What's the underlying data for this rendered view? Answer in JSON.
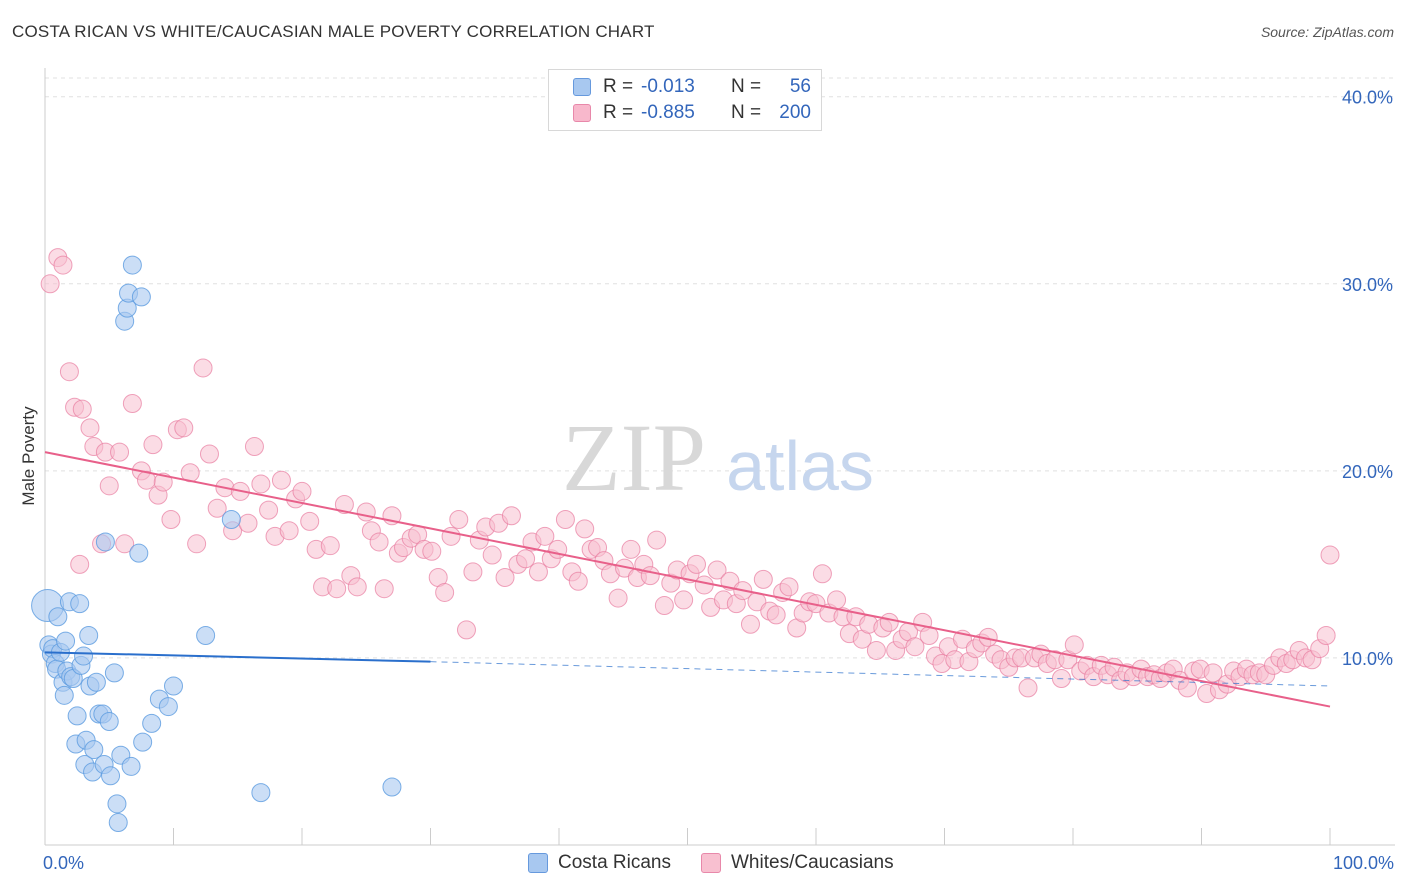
{
  "title": "COSTA RICAN VS WHITE/CAUCASIAN MALE POVERTY CORRELATION CHART",
  "source": "Source: ZipAtlas.com",
  "watermark": {
    "zip": "ZIP",
    "atlas": "atlas"
  },
  "legend": {
    "rows": [
      {
        "r_label": "R =",
        "r_value": "-0.013",
        "n_label": "N =",
        "n_value": "56",
        "color": "#a8c8f0",
        "border": "#6699dd"
      },
      {
        "r_label": "R =",
        "r_value": "-0.885",
        "n_label": "N =",
        "n_value": "200",
        "color": "#f8b8cc",
        "border": "#e888aa"
      }
    ]
  },
  "bottom_legend": [
    {
      "label": "Costa Ricans",
      "color": "#a8c8f0",
      "border": "#6699dd"
    },
    {
      "label": "Whites/Caucasians",
      "color": "#f8c0d0",
      "border": "#e888aa"
    }
  ],
  "chart_data": {
    "type": "scatter",
    "title": "COSTA RICAN VS WHITE/CAUCASIAN MALE POVERTY CORRELATION CHART",
    "xlabel": "",
    "ylabel": "Male Poverty",
    "x_tick_labels": [
      "0.0%",
      "100.0%"
    ],
    "y_tick_labels": [
      "10.0%",
      "20.0%",
      "30.0%",
      "40.0%"
    ],
    "y_ticks": [
      10,
      20,
      30,
      40
    ],
    "xlim": [
      0,
      100
    ],
    "ylim": [
      0,
      41
    ],
    "grid": true,
    "colors": {
      "costa": "#5b9be0",
      "costa_fill": "#a8c8f0",
      "white": "#e87ca0",
      "white_fill": "#f8c0d0",
      "costa_line": "#2a6fcc",
      "white_line": "#e8608a",
      "axis_label": "#3366bb"
    },
    "series": [
      {
        "name": "Costa Ricans",
        "points": [
          [
            0.2,
            12.8
          ],
          [
            0.3,
            10.7
          ],
          [
            0.5,
            10.2
          ],
          [
            0.6,
            10.5
          ],
          [
            0.8,
            9.7
          ],
          [
            0.9,
            9.4
          ],
          [
            1.0,
            12.2
          ],
          [
            1.2,
            10.3
          ],
          [
            1.4,
            8.7
          ],
          [
            1.5,
            8.0
          ],
          [
            1.6,
            10.9
          ],
          [
            1.7,
            9.3
          ],
          [
            1.9,
            13.0
          ],
          [
            2.0,
            9.0
          ],
          [
            2.2,
            8.9
          ],
          [
            2.4,
            5.4
          ],
          [
            2.5,
            6.9
          ],
          [
            2.7,
            12.9
          ],
          [
            2.8,
            9.6
          ],
          [
            3.0,
            10.1
          ],
          [
            3.1,
            4.3
          ],
          [
            3.2,
            5.6
          ],
          [
            3.4,
            11.2
          ],
          [
            3.5,
            8.5
          ],
          [
            3.7,
            3.9
          ],
          [
            3.8,
            5.1
          ],
          [
            4.0,
            8.7
          ],
          [
            4.2,
            7.0
          ],
          [
            4.5,
            7.0
          ],
          [
            4.6,
            4.3
          ],
          [
            4.7,
            16.2
          ],
          [
            5.0,
            6.6
          ],
          [
            5.1,
            3.7
          ],
          [
            5.4,
            9.2
          ],
          [
            5.6,
            2.2
          ],
          [
            5.7,
            1.2
          ],
          [
            5.9,
            4.8
          ],
          [
            6.2,
            28.0
          ],
          [
            6.4,
            28.7
          ],
          [
            6.5,
            29.5
          ],
          [
            6.7,
            4.2
          ],
          [
            6.8,
            31.0
          ],
          [
            7.3,
            15.6
          ],
          [
            7.5,
            29.3
          ],
          [
            7.6,
            5.5
          ],
          [
            8.3,
            6.5
          ],
          [
            8.9,
            7.8
          ],
          [
            9.6,
            7.4
          ],
          [
            10.0,
            8.5
          ],
          [
            12.5,
            11.2
          ],
          [
            14.5,
            17.4
          ],
          [
            16.8,
            2.8
          ],
          [
            27.0,
            3.1
          ]
        ]
      },
      {
        "name": "Whites/Caucasians",
        "points": [
          [
            0.4,
            30.0
          ],
          [
            1.0,
            31.4
          ],
          [
            1.4,
            31.0
          ],
          [
            1.9,
            25.3
          ],
          [
            2.3,
            23.4
          ],
          [
            2.7,
            15.0
          ],
          [
            2.9,
            23.3
          ],
          [
            3.5,
            22.3
          ],
          [
            3.8,
            21.3
          ],
          [
            4.4,
            16.1
          ],
          [
            4.7,
            21.0
          ],
          [
            5.0,
            19.2
          ],
          [
            5.8,
            21.0
          ],
          [
            6.2,
            16.1
          ],
          [
            6.8,
            23.6
          ],
          [
            7.5,
            20.0
          ],
          [
            7.9,
            19.5
          ],
          [
            8.4,
            21.4
          ],
          [
            8.8,
            18.7
          ],
          [
            9.2,
            19.4
          ],
          [
            9.8,
            17.4
          ],
          [
            10.3,
            22.2
          ],
          [
            10.8,
            22.3
          ],
          [
            11.3,
            19.9
          ],
          [
            11.8,
            16.1
          ],
          [
            12.3,
            25.5
          ],
          [
            12.8,
            20.9
          ],
          [
            13.4,
            18.0
          ],
          [
            14.0,
            19.1
          ],
          [
            14.6,
            16.8
          ],
          [
            15.2,
            18.9
          ],
          [
            15.8,
            17.2
          ],
          [
            16.3,
            21.3
          ],
          [
            16.8,
            19.3
          ],
          [
            17.4,
            17.9
          ],
          [
            17.9,
            16.5
          ],
          [
            18.4,
            19.5
          ],
          [
            19.0,
            16.8
          ],
          [
            19.5,
            18.5
          ],
          [
            20.0,
            18.9
          ],
          [
            20.6,
            17.3
          ],
          [
            21.1,
            15.8
          ],
          [
            21.6,
            13.8
          ],
          [
            22.2,
            16.0
          ],
          [
            22.7,
            13.7
          ],
          [
            23.3,
            18.2
          ],
          [
            23.8,
            14.4
          ],
          [
            24.3,
            13.8
          ],
          [
            25.0,
            17.8
          ],
          [
            25.4,
            16.8
          ],
          [
            26.0,
            16.2
          ],
          [
            26.4,
            13.7
          ],
          [
            27.0,
            17.6
          ],
          [
            27.5,
            15.6
          ],
          [
            27.9,
            15.9
          ],
          [
            28.5,
            16.4
          ],
          [
            29.0,
            16.6
          ],
          [
            29.5,
            15.8
          ],
          [
            30.1,
            15.7
          ],
          [
            30.6,
            14.3
          ],
          [
            31.1,
            13.5
          ],
          [
            31.6,
            16.5
          ],
          [
            32.2,
            17.4
          ],
          [
            32.8,
            11.5
          ],
          [
            33.3,
            14.6
          ],
          [
            33.8,
            16.3
          ],
          [
            34.3,
            17.0
          ],
          [
            34.8,
            15.5
          ],
          [
            35.3,
            17.2
          ],
          [
            35.8,
            14.3
          ],
          [
            36.3,
            17.6
          ],
          [
            36.8,
            15.0
          ],
          [
            37.4,
            15.3
          ],
          [
            37.9,
            16.2
          ],
          [
            38.4,
            14.6
          ],
          [
            38.9,
            16.5
          ],
          [
            39.4,
            15.3
          ],
          [
            39.9,
            15.8
          ],
          [
            40.5,
            17.4
          ],
          [
            41.0,
            14.6
          ],
          [
            41.5,
            14.1
          ],
          [
            42.0,
            16.9
          ],
          [
            42.5,
            15.8
          ],
          [
            43.0,
            15.9
          ],
          [
            43.5,
            15.2
          ],
          [
            44.0,
            14.5
          ],
          [
            44.6,
            13.2
          ],
          [
            45.1,
            14.8
          ],
          [
            45.6,
            15.8
          ],
          [
            46.1,
            14.3
          ],
          [
            46.6,
            15.0
          ],
          [
            47.1,
            14.4
          ],
          [
            47.6,
            16.3
          ],
          [
            48.2,
            12.8
          ],
          [
            48.7,
            14.0
          ],
          [
            49.2,
            14.7
          ],
          [
            49.7,
            13.1
          ],
          [
            50.2,
            14.5
          ],
          [
            50.7,
            15.0
          ],
          [
            51.3,
            13.9
          ],
          [
            51.8,
            12.7
          ],
          [
            52.3,
            14.7
          ],
          [
            52.8,
            13.1
          ],
          [
            53.3,
            14.1
          ],
          [
            53.8,
            12.9
          ],
          [
            54.3,
            13.6
          ],
          [
            54.9,
            11.8
          ],
          [
            55.4,
            13.0
          ],
          [
            55.9,
            14.2
          ],
          [
            56.4,
            12.5
          ],
          [
            56.9,
            12.3
          ],
          [
            57.4,
            13.5
          ],
          [
            57.9,
            13.8
          ],
          [
            58.5,
            11.6
          ],
          [
            59.0,
            12.4
          ],
          [
            59.5,
            13.0
          ],
          [
            60.0,
            12.9
          ],
          [
            60.5,
            14.5
          ],
          [
            61.0,
            12.4
          ],
          [
            61.6,
            13.1
          ],
          [
            62.1,
            12.2
          ],
          [
            62.6,
            11.3
          ],
          [
            63.1,
            12.2
          ],
          [
            63.6,
            11.0
          ],
          [
            64.1,
            11.8
          ],
          [
            64.7,
            10.4
          ],
          [
            65.2,
            11.6
          ],
          [
            65.7,
            11.9
          ],
          [
            66.2,
            10.4
          ],
          [
            66.7,
            11.0
          ],
          [
            67.2,
            11.4
          ],
          [
            67.7,
            10.6
          ],
          [
            68.3,
            11.9
          ],
          [
            68.8,
            11.2
          ],
          [
            69.3,
            10.1
          ],
          [
            69.8,
            9.7
          ],
          [
            70.3,
            10.6
          ],
          [
            70.8,
            9.9
          ],
          [
            71.4,
            11.0
          ],
          [
            71.9,
            9.8
          ],
          [
            72.4,
            10.5
          ],
          [
            72.9,
            10.8
          ],
          [
            73.4,
            11.1
          ],
          [
            73.9,
            10.2
          ],
          [
            74.4,
            9.9
          ],
          [
            75.0,
            9.5
          ],
          [
            75.5,
            10.0
          ],
          [
            76.0,
            10.0
          ],
          [
            76.5,
            8.4
          ],
          [
            77.0,
            10.0
          ],
          [
            77.5,
            10.2
          ],
          [
            78.0,
            9.7
          ],
          [
            78.6,
            9.9
          ],
          [
            79.1,
            8.9
          ],
          [
            79.6,
            9.9
          ],
          [
            80.1,
            10.7
          ],
          [
            80.6,
            9.3
          ],
          [
            81.1,
            9.6
          ],
          [
            81.6,
            9.0
          ],
          [
            82.2,
            9.6
          ],
          [
            82.7,
            9.1
          ],
          [
            83.2,
            9.5
          ],
          [
            83.7,
            8.8
          ],
          [
            84.2,
            9.2
          ],
          [
            84.7,
            9.0
          ],
          [
            85.3,
            9.4
          ],
          [
            85.8,
            9.0
          ],
          [
            86.3,
            9.1
          ],
          [
            86.8,
            8.9
          ],
          [
            87.3,
            9.2
          ],
          [
            87.8,
            9.4
          ],
          [
            88.3,
            8.8
          ],
          [
            88.9,
            8.4
          ],
          [
            89.4,
            9.3
          ],
          [
            89.9,
            9.4
          ],
          [
            90.4,
            8.1
          ],
          [
            90.9,
            9.2
          ],
          [
            91.4,
            8.3
          ],
          [
            92.0,
            8.6
          ],
          [
            92.5,
            9.3
          ],
          [
            93.0,
            9.0
          ],
          [
            93.5,
            9.4
          ],
          [
            94.0,
            9.1
          ],
          [
            94.5,
            9.2
          ],
          [
            95.0,
            9.1
          ],
          [
            95.6,
            9.6
          ],
          [
            96.1,
            10.0
          ],
          [
            96.6,
            9.7
          ],
          [
            97.1,
            9.9
          ],
          [
            97.6,
            10.4
          ],
          [
            98.1,
            10.0
          ],
          [
            98.6,
            9.9
          ],
          [
            99.2,
            10.5
          ],
          [
            99.7,
            11.2
          ],
          [
            100.0,
            15.5
          ]
        ]
      }
    ],
    "trend_lines": [
      {
        "name": "Costa Ricans",
        "x0": 0,
        "y0": 10.3,
        "x1": 30,
        "y1": 9.8,
        "dash_x1": 100,
        "dash_y1": 8.5
      },
      {
        "name": "Whites/Caucasians",
        "x0": 0,
        "y0": 21.0,
        "x1": 100,
        "y1": 7.4
      }
    ]
  }
}
